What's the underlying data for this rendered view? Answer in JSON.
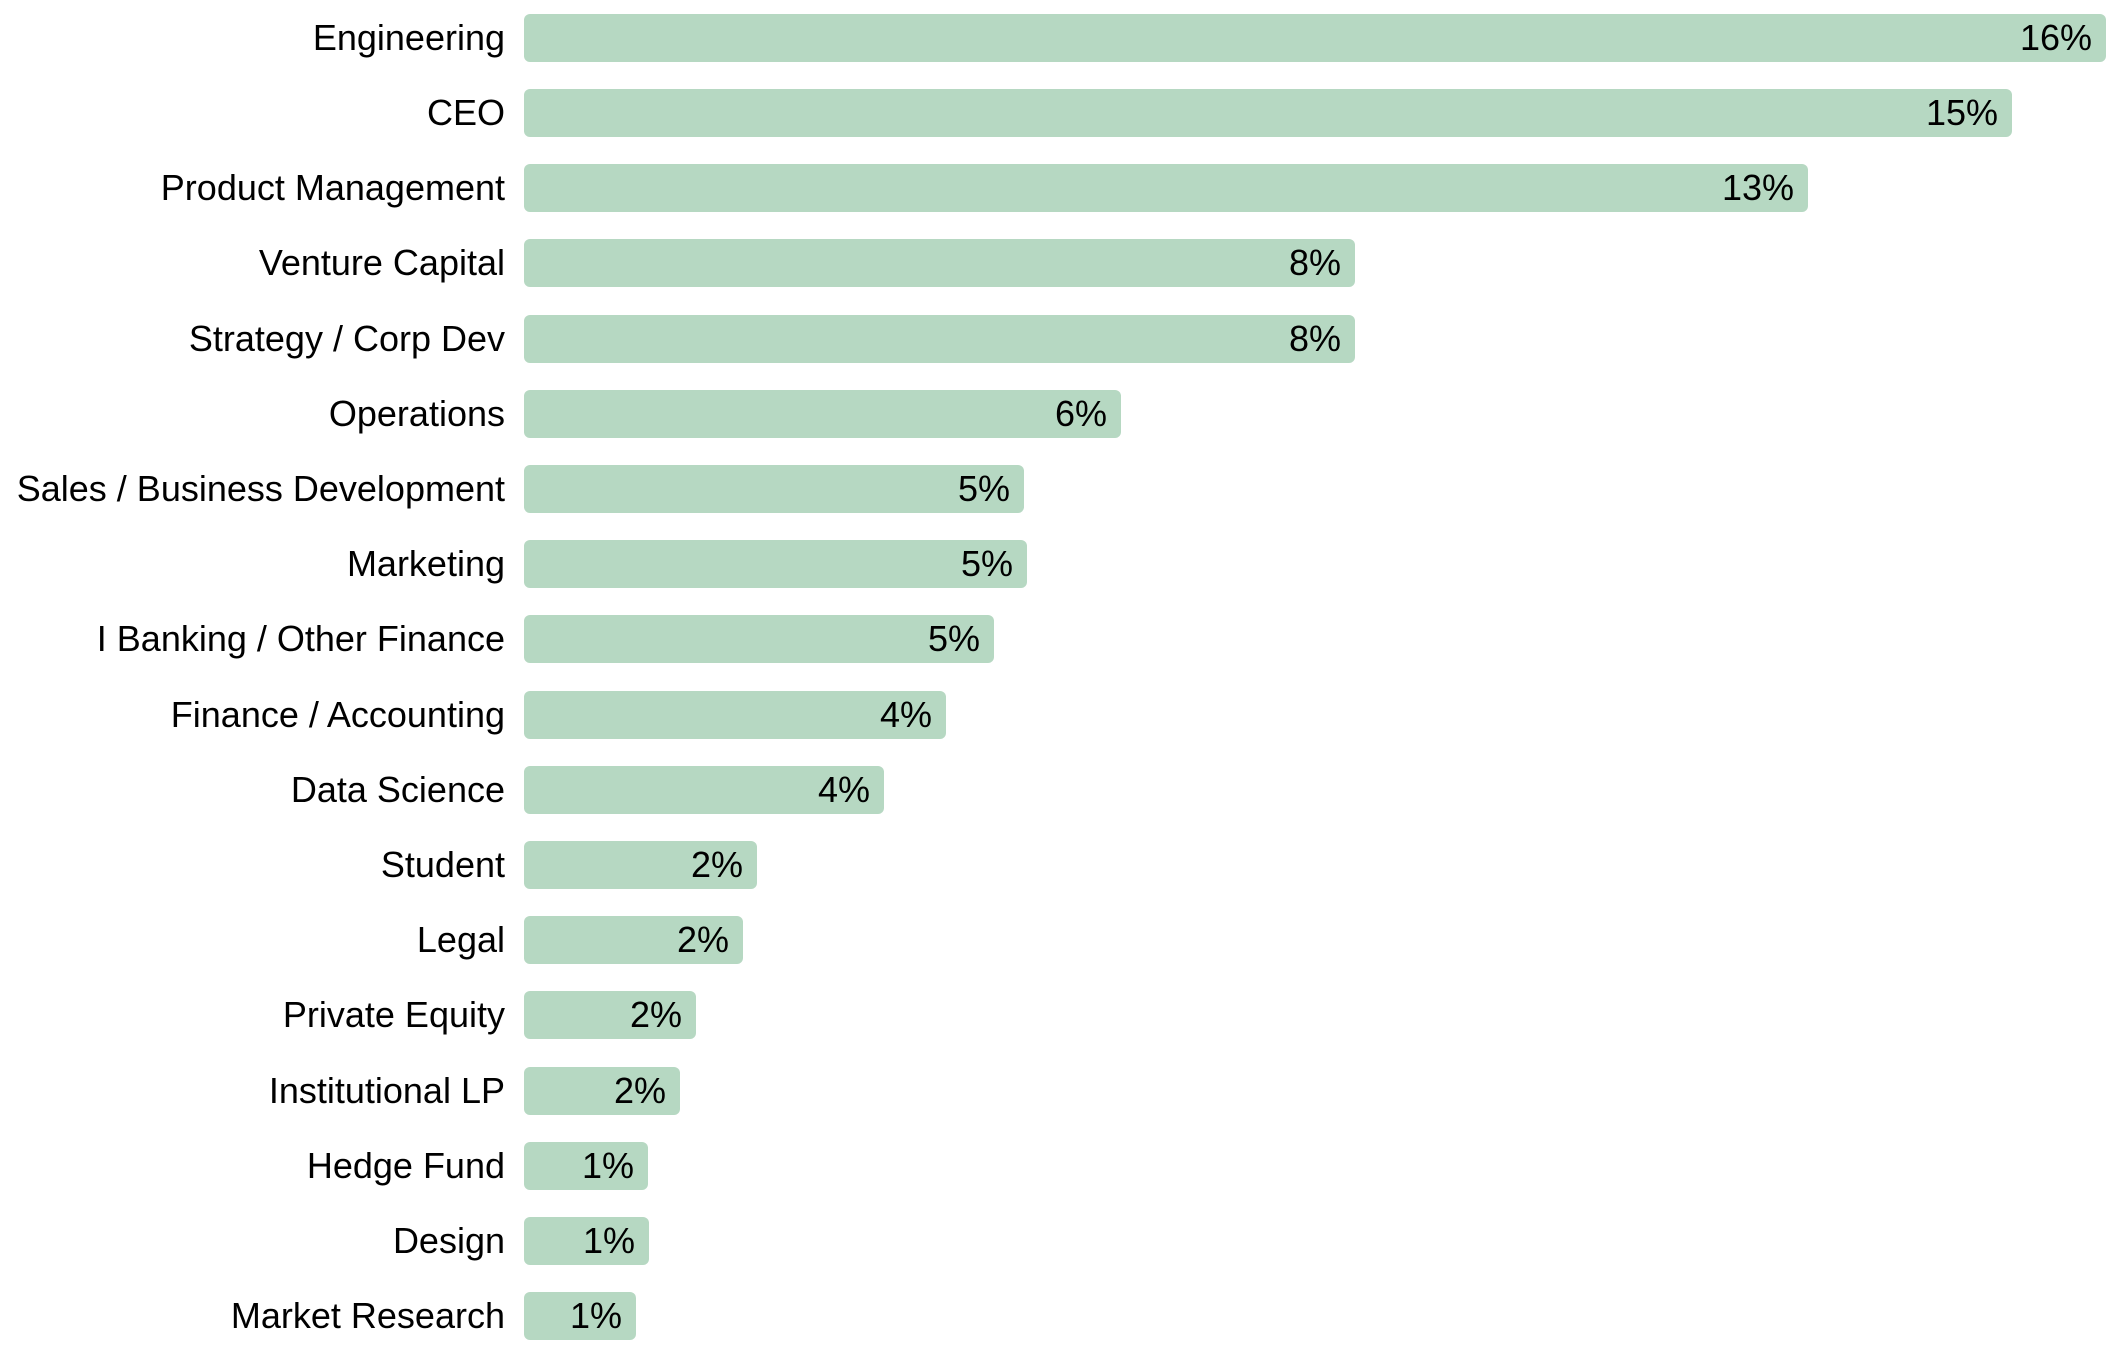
{
  "chart_data": {
    "type": "bar",
    "orientation": "horizontal",
    "title": "",
    "xlabel": "",
    "ylabel": "",
    "grid": false,
    "legend": false,
    "background": "#ffffff",
    "bar_color": "#b6d8c2",
    "text_color": "#000000",
    "value_label_position": "inside-end",
    "xlim": [
      0,
      16.2
    ],
    "categories": [
      "Engineering",
      "CEO",
      "Product Management",
      "Venture Capital",
      "Strategy / Corp Dev",
      "Operations",
      "Sales / Business Development",
      "Marketing",
      "I Banking / Other Finance",
      "Finance / Accounting",
      "Data Science",
      "Student",
      "Legal",
      "Private Equity",
      "Institutional LP",
      "Hedge Fund",
      "Design",
      "Market Research"
    ],
    "values": [
      16.0,
      15.05,
      12.99,
      8.4,
      8.4,
      6.04,
      5.06,
      5.09,
      4.75,
      4.27,
      3.64,
      2.36,
      2.21,
      1.74,
      1.58,
      1.25,
      1.26,
      1.13
    ],
    "labels": [
      "16%",
      "15%",
      "13%",
      "8%",
      "8%",
      "6%",
      "5%",
      "5%",
      "5%",
      "4%",
      "4%",
      "2%",
      "2%",
      "2%",
      "2%",
      "1%",
      "1%",
      "1%"
    ]
  }
}
